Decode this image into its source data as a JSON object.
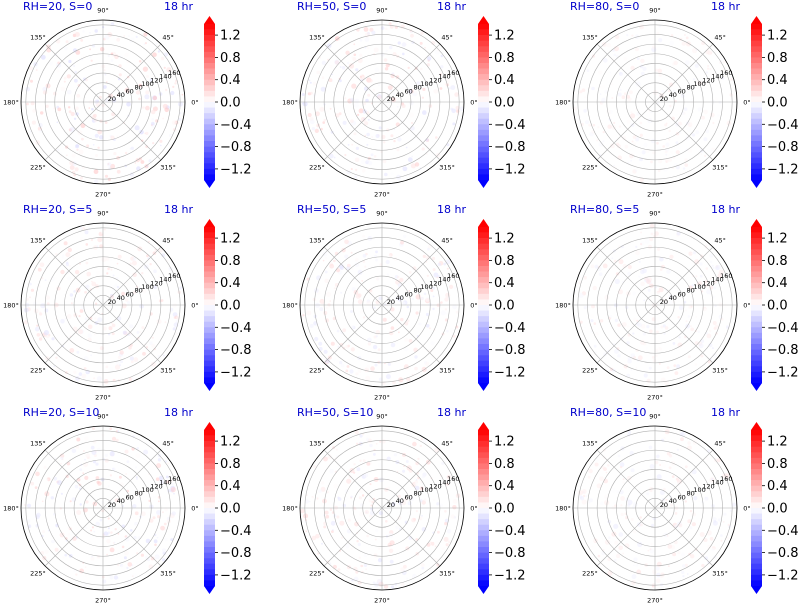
{
  "colors": {
    "positive": "#ff0000",
    "negative": "#0000ff",
    "neutral": "#ffffff",
    "title": "#0000cc",
    "grid": "#b0b0b0",
    "axis": "#000000"
  },
  "chart_data": {
    "type": "polar-heatmap-grid",
    "layout": {
      "rows": 3,
      "cols": 3
    },
    "angular_ticks": [
      "90°",
      "45°",
      "0°",
      "315°",
      "270°",
      "225°",
      "180°",
      "135°"
    ],
    "radial_ticks": [
      "20",
      "40",
      "60",
      "80",
      "100",
      "120",
      "140",
      "160"
    ],
    "radial_range": [
      0,
      170
    ],
    "colorbar": {
      "ticks": [
        "1.2",
        "0.8",
        "0.4",
        "0.0",
        "−0.4",
        "−0.8",
        "−1.2"
      ],
      "tick_values": [
        1.2,
        0.8,
        0.4,
        0.0,
        -0.4,
        -0.8,
        -1.2
      ],
      "range": [
        -1.4,
        1.4
      ],
      "extend": "both",
      "colormap": "bwr"
    },
    "panels": [
      {
        "title": "RH=20, S=0",
        "time": "18 hr",
        "intensity": 0.35
      },
      {
        "title": "RH=50, S=0",
        "time": "18 hr",
        "intensity": 0.3
      },
      {
        "title": "RH=80, S=0",
        "time": "18 hr",
        "intensity": 0.15
      },
      {
        "title": "RH=20, S=5",
        "time": "18 hr",
        "intensity": 0.25
      },
      {
        "title": "RH=50, S=5",
        "time": "18 hr",
        "intensity": 0.25
      },
      {
        "title": "RH=80, S=5",
        "time": "18 hr",
        "intensity": 0.18
      },
      {
        "title": "RH=20, S=10",
        "time": "18 hr",
        "intensity": 0.3
      },
      {
        "title": "RH=50, S=10",
        "time": "18 hr",
        "intensity": 0.25
      },
      {
        "title": "RH=80, S=10",
        "time": "18 hr",
        "intensity": 0.18
      }
    ]
  }
}
